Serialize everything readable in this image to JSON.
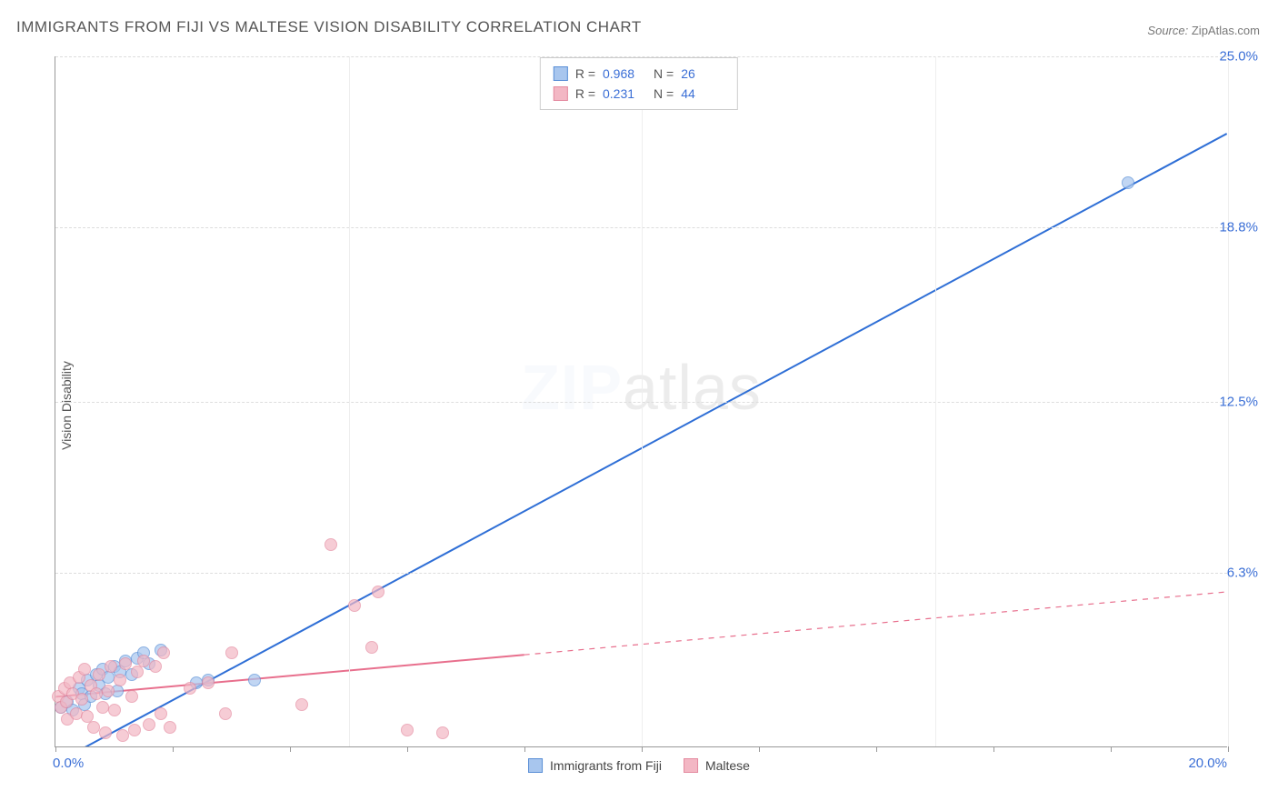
{
  "title": "IMMIGRANTS FROM FIJI VS MALTESE VISION DISABILITY CORRELATION CHART",
  "source_label": "Source:",
  "source_name": "ZipAtlas.com",
  "y_axis_label": "Vision Disability",
  "watermark_a": "ZIP",
  "watermark_b": "atlas",
  "chart": {
    "type": "scatter",
    "xlim": [
      0,
      20
    ],
    "ylim": [
      0,
      25
    ],
    "x_tick_labels": [
      "0.0%",
      "20.0%"
    ],
    "y_ticks": [
      6.3,
      12.5,
      18.8,
      25.0
    ],
    "y_tick_labels": [
      "6.3%",
      "12.5%",
      "18.8%",
      "25.0%"
    ],
    "x_minor_ticks": [
      0,
      2,
      4,
      6,
      8,
      10,
      12,
      14,
      16,
      18,
      20
    ],
    "x_gridlines": [
      5,
      10,
      15,
      20
    ],
    "background_color": "#ffffff",
    "axis_color": "#999999",
    "grid_color_h": "#dddddd",
    "grid_color_v": "#eeeeee",
    "tick_label_color": "#3b6fd6",
    "marker_radius": 7,
    "marker_opacity": 0.7,
    "trend_line_width": 2
  },
  "series": [
    {
      "name": "Immigrants from Fiji",
      "fill_color": "#a8c6ee",
      "stroke_color": "#5a8fd6",
      "line_color": "#2f6fd6",
      "R": "0.968",
      "N": "26",
      "line_dash": "none",
      "trend": {
        "x1": 0,
        "y1": -0.6,
        "x2": 20,
        "y2": 22.2
      },
      "points": [
        [
          0.1,
          1.4
        ],
        [
          0.2,
          1.6
        ],
        [
          0.3,
          1.3
        ],
        [
          0.4,
          2.1
        ],
        [
          0.45,
          1.9
        ],
        [
          0.5,
          1.5
        ],
        [
          0.55,
          2.4
        ],
        [
          0.6,
          1.8
        ],
        [
          0.7,
          2.6
        ],
        [
          0.75,
          2.2
        ],
        [
          0.8,
          2.8
        ],
        [
          0.85,
          1.9
        ],
        [
          0.9,
          2.5
        ],
        [
          1.0,
          2.9
        ],
        [
          1.05,
          2.0
        ],
        [
          1.1,
          2.7
        ],
        [
          1.2,
          3.1
        ],
        [
          1.3,
          2.6
        ],
        [
          1.4,
          3.2
        ],
        [
          1.5,
          3.4
        ],
        [
          1.6,
          3.0
        ],
        [
          1.8,
          3.5
        ],
        [
          2.4,
          2.3
        ],
        [
          2.6,
          2.4
        ],
        [
          3.4,
          2.4
        ],
        [
          18.3,
          20.4
        ]
      ]
    },
    {
      "name": "Maltese",
      "fill_color": "#f3b7c4",
      "stroke_color": "#e48ba0",
      "line_color": "#e86f8d",
      "R": "0.231",
      "N": "44",
      "line_dash": "6,6",
      "trend_solid_until_x": 8.0,
      "trend": {
        "x1": 0,
        "y1": 1.8,
        "x2": 20,
        "y2": 5.6
      },
      "points": [
        [
          0.05,
          1.8
        ],
        [
          0.1,
          1.4
        ],
        [
          0.15,
          2.1
        ],
        [
          0.18,
          1.6
        ],
        [
          0.2,
          1.0
        ],
        [
          0.25,
          2.3
        ],
        [
          0.3,
          1.9
        ],
        [
          0.35,
          1.2
        ],
        [
          0.4,
          2.5
        ],
        [
          0.45,
          1.7
        ],
        [
          0.5,
          2.8
        ],
        [
          0.55,
          1.1
        ],
        [
          0.6,
          2.2
        ],
        [
          0.65,
          0.7
        ],
        [
          0.7,
          1.9
        ],
        [
          0.75,
          2.6
        ],
        [
          0.8,
          1.4
        ],
        [
          0.85,
          0.5
        ],
        [
          0.9,
          2.0
        ],
        [
          0.95,
          2.9
        ],
        [
          1.0,
          1.3
        ],
        [
          1.1,
          2.4
        ],
        [
          1.15,
          0.4
        ],
        [
          1.2,
          3.0
        ],
        [
          1.3,
          1.8
        ],
        [
          1.35,
          0.6
        ],
        [
          1.4,
          2.7
        ],
        [
          1.5,
          3.1
        ],
        [
          1.6,
          0.8
        ],
        [
          1.7,
          2.9
        ],
        [
          1.8,
          1.2
        ],
        [
          1.85,
          3.4
        ],
        [
          1.95,
          0.7
        ],
        [
          2.3,
          2.1
        ],
        [
          2.6,
          2.3
        ],
        [
          2.9,
          1.2
        ],
        [
          3.0,
          3.4
        ],
        [
          4.2,
          1.5
        ],
        [
          4.7,
          7.3
        ],
        [
          5.1,
          5.1
        ],
        [
          5.4,
          3.6
        ],
        [
          5.5,
          5.6
        ],
        [
          6.0,
          0.6
        ],
        [
          6.6,
          0.5
        ]
      ]
    }
  ],
  "legend_top_labels": {
    "R": "R =",
    "N": "N ="
  },
  "legend_bottom": [
    {
      "label": "Immigrants from Fiji",
      "fill": "#a8c6ee",
      "stroke": "#5a8fd6"
    },
    {
      "label": "Maltese",
      "fill": "#f3b7c4",
      "stroke": "#e48ba0"
    }
  ]
}
